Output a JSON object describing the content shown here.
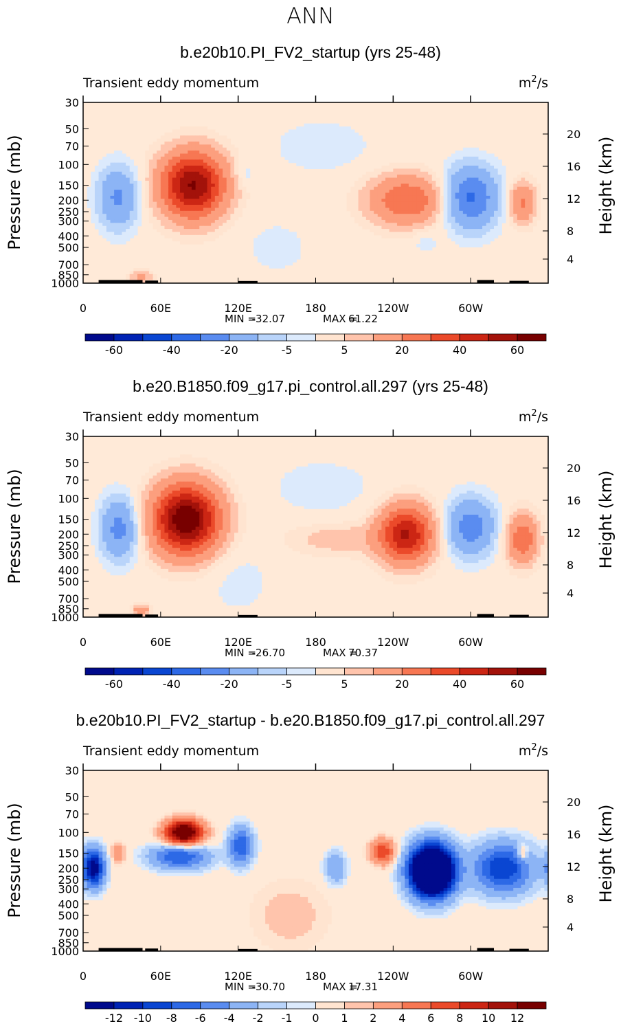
{
  "page": {
    "super_title": "ANN"
  },
  "palette": {
    "bg": "#ffead8",
    "full": [
      "#000a8c",
      "#0023b4",
      "#0a46d2",
      "#2d69e6",
      "#5a8cf0",
      "#8cb4f5",
      "#b9d4fa",
      "#dceafc",
      "#ffe4d0",
      "#ffc4ac",
      "#fc9f7e",
      "#f77753",
      "#eb4a2a",
      "#cc2614",
      "#a3120a",
      "#780000"
    ]
  },
  "chart_data": [
    {
      "type": "heatmap",
      "title": "b.e20b10.PI_FV2_startup (yrs 25-48)",
      "left_label": "Transient eddy momentum",
      "right_label": "m",
      "units_sup": "2",
      "units_slash": "/s",
      "ylabel_left": "Pressure (mb)",
      "ylabel_right": "Height (km)",
      "xticks": [
        "0",
        "60E",
        "120E",
        "180",
        "120W",
        "60W"
      ],
      "yticks": [
        "30",
        "50",
        "70",
        "100",
        "150",
        "200",
        "250",
        "300",
        "400",
        "500",
        "700",
        "850",
        "1000"
      ],
      "height_ticks": [
        "20",
        "16",
        "12",
        "8",
        "4"
      ],
      "min_label": "MIN =",
      "min": "-32.07",
      "max_label": "MAX =",
      "max": "61.22",
      "colorbar_labels": [
        "-60",
        "-40",
        "-20",
        "-5",
        "5",
        "20",
        "40",
        "60"
      ],
      "features": [
        {
          "lon": 27,
          "p": 190,
          "value": -22,
          "lonw": 15,
          "lz": 0.75
        },
        {
          "lon": 85,
          "p": 150,
          "value": 61,
          "lonw": 24,
          "lz": 0.8
        },
        {
          "lon": 125,
          "p": 120,
          "value": -5,
          "lonw": 8,
          "lz": 0.3
        },
        {
          "lon": 185,
          "p": 70,
          "value": -4,
          "lonw": 40,
          "lz": 0.7
        },
        {
          "lon": 250,
          "p": 200,
          "value": 30,
          "lonw": 28,
          "lz": 0.6
        },
        {
          "lon": 300,
          "p": 190,
          "value": -32,
          "lonw": 20,
          "lz": 0.75
        },
        {
          "lon": 340,
          "p": 210,
          "value": 22,
          "lonw": 10,
          "lz": 0.5
        },
        {
          "lon": 45,
          "p": 880,
          "value": 14,
          "lonw": 8,
          "lz": 0.15
        },
        {
          "lon": 265,
          "p": 450,
          "value": -4,
          "lonw": 10,
          "lz": 0.3
        },
        {
          "lon": 150,
          "p": 500,
          "value": -3,
          "lonw": 30,
          "lz": 0.8
        }
      ]
    },
    {
      "type": "heatmap",
      "title": "b.e20.B1850.f09_g17.pi_control.all.297 (yrs 25-48)",
      "left_label": "Transient eddy momentum",
      "right_label": "m",
      "units_sup": "2",
      "units_slash": "/s",
      "ylabel_left": "Pressure (mb)",
      "ylabel_right": "Height (km)",
      "xticks": [
        "0",
        "60E",
        "120E",
        "180",
        "120W",
        "60W"
      ],
      "yticks": [
        "30",
        "50",
        "70",
        "100",
        "150",
        "200",
        "250",
        "300",
        "400",
        "500",
        "700",
        "850",
        "1000"
      ],
      "height_ticks": [
        "20",
        "16",
        "12",
        "8",
        "4"
      ],
      "min_label": "MIN =",
      "min": "-26.70",
      "max_label": "MAX =",
      "max": "70.37",
      "colorbar_labels": [
        "-60",
        "-40",
        "-20",
        "-5",
        "5",
        "20",
        "40",
        "60"
      ],
      "features": [
        {
          "lon": 28,
          "p": 180,
          "value": -24,
          "lonw": 14,
          "lz": 0.75
        },
        {
          "lon": 80,
          "p": 150,
          "value": 70,
          "lonw": 25,
          "lz": 0.85
        },
        {
          "lon": 250,
          "p": 200,
          "value": 50,
          "lonw": 20,
          "lz": 0.7
        },
        {
          "lon": 300,
          "p": 175,
          "value": -26,
          "lonw": 18,
          "lz": 0.7
        },
        {
          "lon": 340,
          "p": 220,
          "value": 28,
          "lonw": 12,
          "lz": 0.6
        },
        {
          "lon": 200,
          "p": 220,
          "value": 8,
          "lonw": 40,
          "lz": 0.4
        },
        {
          "lon": 185,
          "p": 80,
          "value": -4,
          "lonw": 40,
          "lz": 0.7
        },
        {
          "lon": 45,
          "p": 880,
          "value": 16,
          "lonw": 7,
          "lz": 0.15
        },
        {
          "lon": 120,
          "p": 500,
          "value": -3,
          "lonw": 30,
          "lz": 1.0
        }
      ]
    },
    {
      "type": "heatmap",
      "title": "b.e20b10.PI_FV2_startup - b.e20.B1850.f09_g17.pi_control.all.297",
      "left_label": "Transient eddy momentum",
      "right_label": "m",
      "units_sup": "2",
      "units_slash": "/s",
      "ylabel_left": "Pressure (mb)",
      "ylabel_right": "Height (km)",
      "xticks": [
        "0",
        "60E",
        "120E",
        "180",
        "120W",
        "60W"
      ],
      "yticks": [
        "30",
        "50",
        "70",
        "100",
        "150",
        "200",
        "250",
        "300",
        "400",
        "500",
        "700",
        "850",
        "1000"
      ],
      "height_ticks": [
        "20",
        "16",
        "12",
        "8",
        "4"
      ],
      "min_label": "MIN =",
      "min": "-30.70",
      "max_label": "MAX =",
      "max": "17.31",
      "colorbar_labels": [
        "-12",
        "-10",
        "-8",
        "-6",
        "-4",
        "-2",
        "-1",
        "0",
        "1",
        "2",
        "4",
        "6",
        "8",
        "10",
        "12"
      ],
      "features": [
        {
          "lon": 8,
          "p": 200,
          "value": -14,
          "lonw": 8,
          "lz": 0.45
        },
        {
          "lon": 27,
          "p": 150,
          "value": 4,
          "lonw": 5,
          "lz": 0.25
        },
        {
          "lon": 78,
          "p": 100,
          "value": 17,
          "lonw": 14,
          "lz": 0.3
        },
        {
          "lon": 75,
          "p": 160,
          "value": -8,
          "lonw": 22,
          "lz": 0.3
        },
        {
          "lon": 122,
          "p": 130,
          "value": -8,
          "lonw": 9,
          "lz": 0.45
        },
        {
          "lon": 195,
          "p": 200,
          "value": -4,
          "lonw": 8,
          "lz": 0.4
        },
        {
          "lon": 232,
          "p": 145,
          "value": 8,
          "lonw": 9,
          "lz": 0.3
        },
        {
          "lon": 270,
          "p": 210,
          "value": -31,
          "lonw": 16,
          "lz": 0.6
        },
        {
          "lon": 325,
          "p": 200,
          "value": -10,
          "lonw": 22,
          "lz": 0.6
        },
        {
          "lon": 340,
          "p": 150,
          "value": 5,
          "lonw": 4,
          "lz": 0.2
        },
        {
          "lon": 160,
          "p": 500,
          "value": 1.5,
          "lonw": 30,
          "lz": 0.9
        }
      ]
    }
  ]
}
